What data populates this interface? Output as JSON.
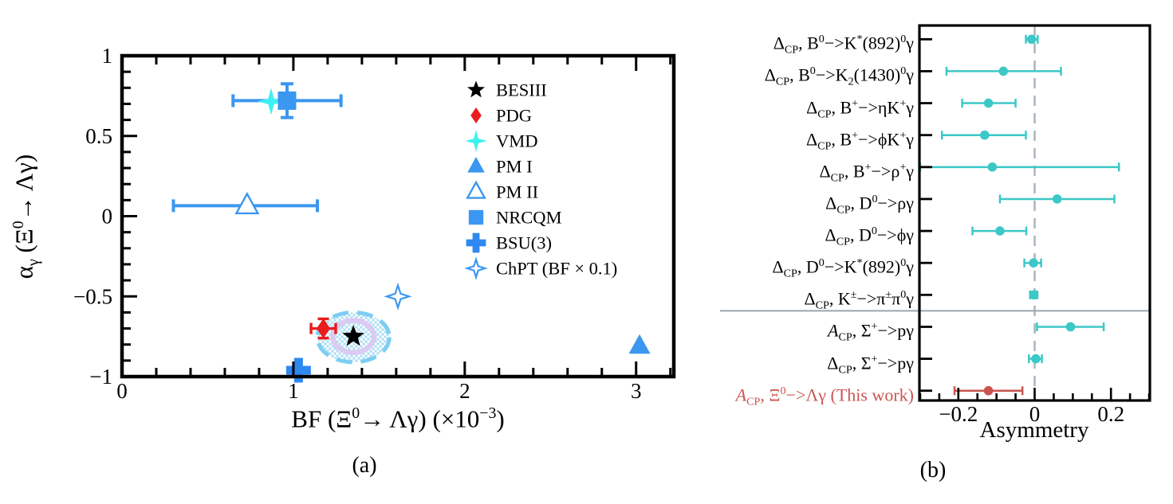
{
  "figure": {
    "background": "#ffffff",
    "caption_a": "(a)",
    "caption_b": "(b)"
  },
  "chart_data": [
    {
      "id": "panel_a",
      "type": "scatter",
      "xlabel_html": "BF (Ξ<sup>0</sup>→ Λγ) (×10<sup>−3</sup>)",
      "ylabel_html": "α<sub>γ</sub> (Ξ<sup>0</sup>→ Λγ)",
      "xlim": [
        0,
        3.22
      ],
      "ylim": [
        -1,
        1
      ],
      "xticks": {
        "major": [
          0,
          1,
          2,
          3
        ],
        "labels": [
          "0",
          "1",
          "2",
          "3"
        ],
        "minor_step": 0.2
      },
      "yticks": {
        "major": [
          -1,
          -0.5,
          0,
          0.5,
          1
        ],
        "labels": [
          "−1",
          "−0.5",
          "0",
          "0.5",
          "1"
        ],
        "minor_step": 0.1
      },
      "legend_position": "upper right inside",
      "grid": false,
      "series": [
        {
          "name": "BESIII",
          "marker": "star5",
          "color": "#000000",
          "x": 1.35,
          "y": -0.75
        },
        {
          "name": "PDG",
          "marker": "diamond",
          "color": "#ea1c1c",
          "x": 1.175,
          "y": -0.7,
          "xerr": 0.072,
          "yerr": 0.06
        },
        {
          "name": "VMD",
          "marker": "star4",
          "color": "#3ff0f0",
          "x": 0.87,
          "y": 0.715
        },
        {
          "name": "PM I",
          "marker": "triangle",
          "color": "#3b97f0",
          "x": 3.02,
          "y": -0.81
        },
        {
          "name": "PM II",
          "marker": "triangle_open",
          "color": "#3b97f0",
          "x": 0.73,
          "y": 0.065,
          "xerr_lo": 0.43,
          "xerr_hi": 0.41
        },
        {
          "name": "NRCQM",
          "marker": "square",
          "color": "#3b97f0",
          "x": 0.963,
          "y": 0.72,
          "xerr": 0.315,
          "yerr": 0.105
        },
        {
          "name": "BSU(3)",
          "marker": "plus",
          "color": "#2f88ef",
          "x": 1.03,
          "y": -0.96
        },
        {
          "name": "ChPT (BF × 0.1)",
          "marker": "star4_open",
          "color": "#3b97f0",
          "x": 1.61,
          "y": -0.5
        }
      ],
      "contours": [
        {
          "role": "outer",
          "cx": 1.35,
          "cy": -0.755,
          "rx": 0.21,
          "ry": 0.155,
          "stroke": "#7ecdf2",
          "fill_hatch": "#9ed9f4",
          "style": "dashed"
        },
        {
          "role": "inner",
          "cx": 1.35,
          "cy": -0.75,
          "rx": 0.12,
          "ry": 0.1,
          "stroke": "#dacbf3",
          "style": "solid"
        }
      ]
    },
    {
      "id": "panel_b",
      "type": "forest",
      "xlabel": "Asymmetry",
      "xlim": [
        -0.302,
        0.302
      ],
      "xticks": {
        "major": [
          -0.2,
          0,
          0.2
        ],
        "labels": [
          "−0.2",
          "0",
          "0.2"
        ],
        "minor_step": 0.05
      },
      "zero_line": 0,
      "zero_line_color": "#a9b6c2",
      "separator_after": 9,
      "separator_color": "#9aa6b0",
      "marker_color": "#3bc8c6",
      "highlight_color": "#c9544f",
      "rows": [
        {
          "label_html": "Δ<sub>CP</sub>, B<sup>0</sup>−&gt;K<sup>*</sup>(892)<sup>0</sup>γ",
          "value": -0.008,
          "lo": -0.023,
          "hi": 0.008
        },
        {
          "label_html": "Δ<sub>CP</sub>, B<sup>0</sup>−&gt;K<sub>2</sub>(1430)<sup>0</sup>γ",
          "value": -0.082,
          "lo": -0.231,
          "hi": 0.069
        },
        {
          "label_html": "Δ<sub>CP</sub>, B<sup>+</sup>−&gt;ηK<sup>+</sup>γ",
          "value": -0.121,
          "lo": -0.19,
          "hi": -0.05
        },
        {
          "label_html": "Δ<sub>CP</sub>, B<sup>+</sup>−&gt;ϕK<sup>+</sup>γ",
          "value": -0.131,
          "lo": -0.243,
          "hi": -0.023
        },
        {
          "label_html": "Δ<sub>CP</sub>, B<sup>+</sup>−&gt;ρ<sup>+</sup>γ",
          "value": -0.111,
          "lo": -0.3,
          "hi": 0.221
        },
        {
          "label_html": "Δ<sub>CP</sub>, D<sup>0</sup>−&gt;ργ",
          "value": 0.059,
          "lo": -0.091,
          "hi": 0.209
        },
        {
          "label_html": "Δ<sub>CP</sub>, D<sup>0</sup>−&gt;ϕγ",
          "value": -0.091,
          "lo": -0.163,
          "hi": -0.022
        },
        {
          "label_html": "Δ<sub>CP</sub>, D<sup>0</sup>−&gt;K<sup>*</sup>(892)<sup>0</sup>γ",
          "value": -0.003,
          "lo": -0.027,
          "hi": 0.017
        },
        {
          "label_html": "Δ<sub>CP</sub>, K<sup>±</sup>−&gt;π<sup>±</sup>π<sup>0</sup>γ",
          "value": -0.002,
          "lo": -0.012,
          "hi": 0.007
        },
        {
          "label_html": "<i>A</i><sub>CP</sub>, Σ<sup>+</sup>−&gt;pγ",
          "value": 0.094,
          "lo": 0.006,
          "hi": 0.181
        },
        {
          "label_html": "Δ<sub>CP</sub>, Σ<sup>+</sup>−&gt;pγ",
          "value": 0.003,
          "lo": -0.015,
          "hi": 0.019
        },
        {
          "label_html": "<i>A</i><sub>CP</sub>, Ξ<sup>0</sup>−&gt;Λγ (This work)",
          "value": -0.121,
          "lo": -0.21,
          "hi": -0.032,
          "highlight": true
        }
      ]
    }
  ]
}
